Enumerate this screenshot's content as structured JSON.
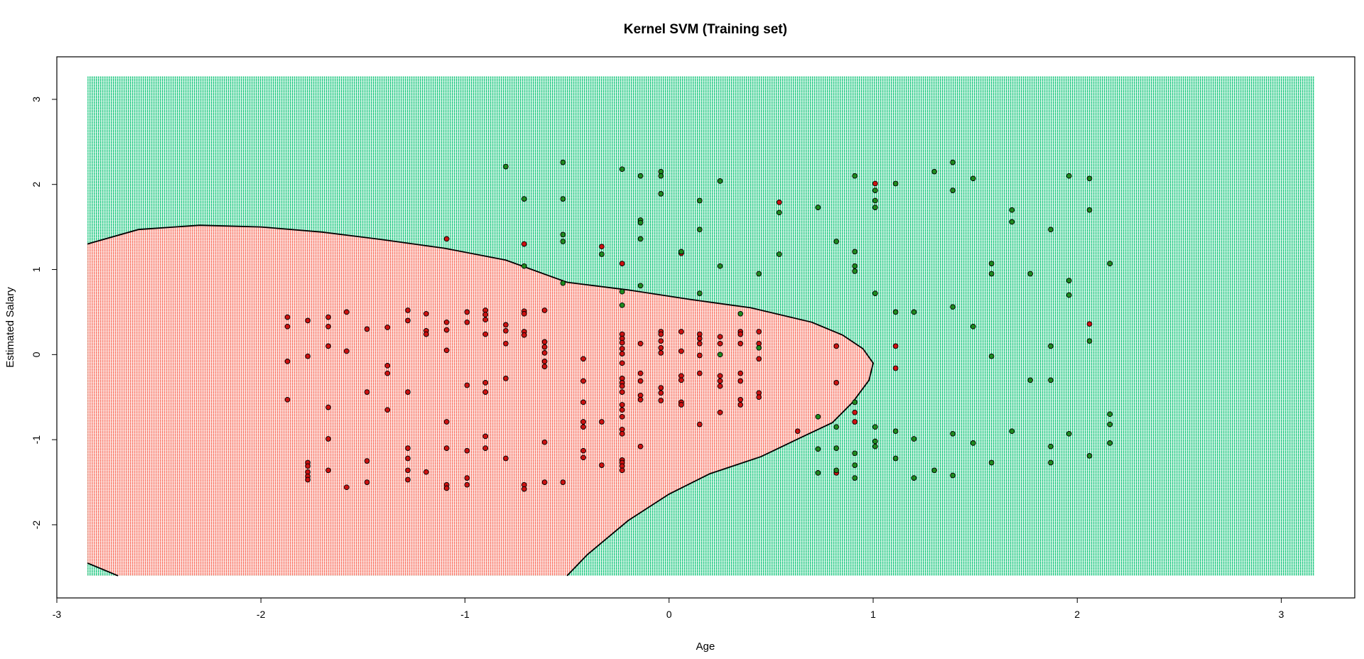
{
  "chart_data": {
    "type": "scatter",
    "title": "Kernel SVM (Training set)",
    "xlabel": "Age",
    "ylabel": "Estimated Salary",
    "xlim": [
      -3.0,
      3.36
    ],
    "ylim": [
      -2.86,
      3.5
    ],
    "grid_extent": {
      "x": [
        -2.85,
        3.16
      ],
      "y": [
        -2.6,
        3.27
      ]
    },
    "x_ticks": [
      -3,
      -2,
      -1,
      0,
      1,
      2,
      3
    ],
    "y_ticks": [
      -2,
      -1,
      0,
      1,
      2,
      3
    ],
    "grid": false,
    "legend": "none",
    "colors": {
      "region_0": "#fa8072",
      "region_1": "#2ecc8a",
      "point_0": "#cc1111",
      "point_1": "#1e8a1e",
      "boundary": "#000000"
    },
    "decision_boundary": {
      "upper": [
        [
          -2.85,
          1.3
        ],
        [
          -2.6,
          1.47
        ],
        [
          -2.3,
          1.52
        ],
        [
          -2.0,
          1.5
        ],
        [
          -1.7,
          1.44
        ],
        [
          -1.4,
          1.35
        ],
        [
          -1.1,
          1.25
        ],
        [
          -0.8,
          1.11
        ],
        [
          -0.5,
          0.85
        ],
        [
          -0.2,
          0.76
        ],
        [
          0.1,
          0.65
        ],
        [
          0.4,
          0.55
        ],
        [
          0.7,
          0.38
        ],
        [
          0.85,
          0.23
        ],
        [
          0.95,
          0.07
        ],
        [
          1.0,
          -0.1
        ]
      ],
      "lower": [
        [
          1.0,
          -0.1
        ],
        [
          0.98,
          -0.3
        ],
        [
          0.9,
          -0.56
        ],
        [
          0.8,
          -0.8
        ],
        [
          0.65,
          -0.97
        ],
        [
          0.45,
          -1.2
        ],
        [
          0.2,
          -1.4
        ],
        [
          0.0,
          -1.64
        ],
        [
          -0.2,
          -1.95
        ],
        [
          -0.4,
          -2.35
        ],
        [
          -0.5,
          -2.6
        ]
      ],
      "corner": [
        [
          -2.85,
          -2.45
        ],
        [
          -2.7,
          -2.6
        ]
      ]
    },
    "series": [
      {
        "name": "",
        "class": 0,
        "points": [
          [
            -1.87,
            0.44
          ],
          [
            -1.87,
            0.33
          ],
          [
            -1.87,
            -0.08
          ],
          [
            -1.87,
            -0.53
          ],
          [
            -1.77,
            0.4
          ],
          [
            -1.77,
            -0.02
          ],
          [
            -1.77,
            -1.27
          ],
          [
            -1.77,
            -1.31
          ],
          [
            -1.77,
            -1.38
          ],
          [
            -1.77,
            -1.43
          ],
          [
            -1.77,
            -1.47
          ],
          [
            -1.67,
            0.44
          ],
          [
            -1.67,
            0.33
          ],
          [
            -1.67,
            0.1
          ],
          [
            -1.67,
            -0.62
          ],
          [
            -1.67,
            -0.99
          ],
          [
            -1.67,
            -1.36
          ],
          [
            -1.58,
            0.5
          ],
          [
            -1.58,
            0.04
          ],
          [
            -1.58,
            -1.56
          ],
          [
            -1.48,
            0.3
          ],
          [
            -1.48,
            -0.44
          ],
          [
            -1.48,
            -1.25
          ],
          [
            -1.48,
            -1.5
          ],
          [
            -1.38,
            0.32
          ],
          [
            -1.38,
            -0.13
          ],
          [
            -1.38,
            -0.22
          ],
          [
            -1.38,
            -0.65
          ],
          [
            -1.28,
            0.52
          ],
          [
            -1.28,
            0.4
          ],
          [
            -1.28,
            -0.44
          ],
          [
            -1.28,
            -1.1
          ],
          [
            -1.28,
            -1.22
          ],
          [
            -1.28,
            -1.36
          ],
          [
            -1.28,
            -1.47
          ],
          [
            -1.19,
            0.48
          ],
          [
            -1.19,
            0.28
          ],
          [
            -1.19,
            0.24
          ],
          [
            -1.19,
            -1.38
          ],
          [
            -1.09,
            1.36
          ],
          [
            -1.09,
            0.38
          ],
          [
            -1.09,
            0.29
          ],
          [
            -1.09,
            0.05
          ],
          [
            -1.09,
            -0.79
          ],
          [
            -1.09,
            -1.1
          ],
          [
            -1.09,
            -1.53
          ],
          [
            -1.09,
            -1.57
          ],
          [
            -0.99,
            0.5
          ],
          [
            -0.99,
            0.38
          ],
          [
            -0.99,
            -0.36
          ],
          [
            -0.99,
            -1.13
          ],
          [
            -0.99,
            -1.45
          ],
          [
            -0.99,
            -1.53
          ],
          [
            -0.9,
            0.52
          ],
          [
            -0.9,
            0.47
          ],
          [
            -0.9,
            0.41
          ],
          [
            -0.9,
            0.24
          ],
          [
            -0.9,
            -0.33
          ],
          [
            -0.9,
            -0.44
          ],
          [
            -0.9,
            -0.96
          ],
          [
            -0.9,
            -1.1
          ],
          [
            -0.8,
            0.35
          ],
          [
            -0.8,
            0.28
          ],
          [
            -0.8,
            0.13
          ],
          [
            -0.8,
            -0.28
          ],
          [
            -0.8,
            -1.22
          ],
          [
            -0.71,
            1.3
          ],
          [
            -0.71,
            0.51
          ],
          [
            -0.71,
            0.48
          ],
          [
            -0.71,
            0.27
          ],
          [
            -0.71,
            0.23
          ],
          [
            -0.71,
            -1.53
          ],
          [
            -0.71,
            -1.58
          ],
          [
            -0.61,
            0.52
          ],
          [
            -0.61,
            0.15
          ],
          [
            -0.61,
            0.09
          ],
          [
            -0.61,
            0.02
          ],
          [
            -0.61,
            -0.08
          ],
          [
            -0.61,
            -0.14
          ],
          [
            -0.61,
            -1.03
          ],
          [
            -0.61,
            -1.5
          ],
          [
            -0.52,
            -1.5
          ],
          [
            -0.42,
            -0.05
          ],
          [
            -0.42,
            -0.31
          ],
          [
            -0.42,
            -0.56
          ],
          [
            -0.42,
            -0.79
          ],
          [
            -0.42,
            -0.85
          ],
          [
            -0.42,
            -1.13
          ],
          [
            -0.42,
            -1.21
          ],
          [
            -0.33,
            1.27
          ],
          [
            -0.33,
            -0.79
          ],
          [
            -0.33,
            -1.3
          ],
          [
            -0.23,
            1.07
          ],
          [
            -0.23,
            0.24
          ],
          [
            -0.23,
            0.19
          ],
          [
            -0.23,
            0.14
          ],
          [
            -0.23,
            0.07
          ],
          [
            -0.23,
            0.01
          ],
          [
            -0.23,
            -0.1
          ],
          [
            -0.23,
            -0.28
          ],
          [
            -0.23,
            -0.33
          ],
          [
            -0.23,
            -0.37
          ],
          [
            -0.23,
            -0.44
          ],
          [
            -0.23,
            -0.59
          ],
          [
            -0.23,
            -0.65
          ],
          [
            -0.23,
            -0.73
          ],
          [
            -0.23,
            -0.88
          ],
          [
            -0.23,
            -0.93
          ],
          [
            -0.23,
            -1.24
          ],
          [
            -0.23,
            -1.27
          ],
          [
            -0.23,
            -1.31
          ],
          [
            -0.23,
            -1.36
          ],
          [
            -0.14,
            0.13
          ],
          [
            -0.14,
            -0.22
          ],
          [
            -0.14,
            -0.31
          ],
          [
            -0.14,
            -0.48
          ],
          [
            -0.14,
            -0.53
          ],
          [
            -0.14,
            -1.08
          ],
          [
            -0.04,
            0.27
          ],
          [
            -0.04,
            0.24
          ],
          [
            -0.04,
            0.16
          ],
          [
            -0.04,
            0.08
          ],
          [
            -0.04,
            0.02
          ],
          [
            -0.04,
            -0.39
          ],
          [
            -0.04,
            -0.45
          ],
          [
            -0.04,
            -0.54
          ],
          [
            0.06,
            1.19
          ],
          [
            0.06,
            0.27
          ],
          [
            0.06,
            0.04
          ],
          [
            0.06,
            -0.25
          ],
          [
            0.06,
            -0.3
          ],
          [
            0.06,
            -0.56
          ],
          [
            0.06,
            -0.59
          ],
          [
            0.15,
            0.24
          ],
          [
            0.15,
            0.19
          ],
          [
            0.15,
            0.13
          ],
          [
            0.15,
            -0.01
          ],
          [
            0.15,
            -0.22
          ],
          [
            0.15,
            -0.82
          ],
          [
            0.25,
            0.21
          ],
          [
            0.25,
            0.13
          ],
          [
            0.25,
            -0.25
          ],
          [
            0.25,
            -0.31
          ],
          [
            0.25,
            -0.37
          ],
          [
            0.25,
            -0.68
          ],
          [
            0.35,
            0.27
          ],
          [
            0.35,
            0.24
          ],
          [
            0.35,
            0.13
          ],
          [
            0.35,
            -0.22
          ],
          [
            0.35,
            -0.31
          ],
          [
            0.35,
            -0.53
          ],
          [
            0.35,
            -0.59
          ],
          [
            0.44,
            0.27
          ],
          [
            0.44,
            0.13
          ],
          [
            0.44,
            -0.05
          ],
          [
            0.44,
            -0.45
          ],
          [
            0.44,
            -0.5
          ],
          [
            0.54,
            1.79
          ],
          [
            0.63,
            -0.9
          ],
          [
            0.82,
            0.1
          ],
          [
            0.82,
            -0.33
          ],
          [
            0.82,
            -1.39
          ],
          [
            0.91,
            -0.68
          ],
          [
            0.91,
            -0.79
          ],
          [
            1.01,
            2.01
          ],
          [
            1.11,
            0.1
          ],
          [
            1.11,
            -0.16
          ],
          [
            2.06,
            0.36
          ]
        ]
      },
      {
        "name": "",
        "class": 1,
        "points": [
          [
            -0.8,
            2.21
          ],
          [
            -0.71,
            1.83
          ],
          [
            -0.71,
            1.04
          ],
          [
            -0.52,
            2.26
          ],
          [
            -0.52,
            1.83
          ],
          [
            -0.52,
            1.41
          ],
          [
            -0.52,
            1.33
          ],
          [
            -0.52,
            0.84
          ],
          [
            -0.33,
            1.18
          ],
          [
            -0.23,
            2.18
          ],
          [
            -0.23,
            0.74
          ],
          [
            -0.23,
            0.58
          ],
          [
            -0.14,
            2.1
          ],
          [
            -0.14,
            1.58
          ],
          [
            -0.14,
            1.55
          ],
          [
            -0.14,
            1.36
          ],
          [
            -0.14,
            0.81
          ],
          [
            -0.04,
            2.15
          ],
          [
            -0.04,
            2.1
          ],
          [
            -0.04,
            1.89
          ],
          [
            0.06,
            1.21
          ],
          [
            0.15,
            1.81
          ],
          [
            0.15,
            1.47
          ],
          [
            0.15,
            0.72
          ],
          [
            0.25,
            2.04
          ],
          [
            0.25,
            1.04
          ],
          [
            0.25,
            0.0
          ],
          [
            0.35,
            0.48
          ],
          [
            0.44,
            0.95
          ],
          [
            0.44,
            0.08
          ],
          [
            0.54,
            1.67
          ],
          [
            0.54,
            1.18
          ],
          [
            0.73,
            1.73
          ],
          [
            0.73,
            -0.73
          ],
          [
            0.73,
            -1.11
          ],
          [
            0.73,
            -1.39
          ],
          [
            0.82,
            1.33
          ],
          [
            0.82,
            -0.85
          ],
          [
            0.82,
            -1.1
          ],
          [
            0.82,
            -1.36
          ],
          [
            0.91,
            2.1
          ],
          [
            0.91,
            1.21
          ],
          [
            0.91,
            1.04
          ],
          [
            0.91,
            0.98
          ],
          [
            0.91,
            -0.56
          ],
          [
            0.91,
            -1.16
          ],
          [
            0.91,
            -1.3
          ],
          [
            0.91,
            -1.45
          ],
          [
            1.01,
            1.93
          ],
          [
            1.01,
            1.81
          ],
          [
            1.01,
            1.73
          ],
          [
            1.01,
            0.72
          ],
          [
            1.01,
            -0.85
          ],
          [
            1.01,
            -1.02
          ],
          [
            1.01,
            -1.08
          ],
          [
            1.11,
            2.01
          ],
          [
            1.11,
            0.5
          ],
          [
            1.11,
            -0.9
          ],
          [
            1.11,
            -1.22
          ],
          [
            1.2,
            0.5
          ],
          [
            1.2,
            -0.99
          ],
          [
            1.2,
            -1.45
          ],
          [
            1.3,
            2.15
          ],
          [
            1.3,
            -1.36
          ],
          [
            1.39,
            2.26
          ],
          [
            1.39,
            1.93
          ],
          [
            1.39,
            0.56
          ],
          [
            1.39,
            -0.93
          ],
          [
            1.39,
            -1.42
          ],
          [
            1.49,
            2.07
          ],
          [
            1.49,
            0.33
          ],
          [
            1.49,
            -1.04
          ],
          [
            1.58,
            1.07
          ],
          [
            1.58,
            0.95
          ],
          [
            1.58,
            -0.02
          ],
          [
            1.58,
            -1.27
          ],
          [
            1.68,
            1.7
          ],
          [
            1.68,
            1.56
          ],
          [
            1.68,
            -0.9
          ],
          [
            1.77,
            0.95
          ],
          [
            1.77,
            -0.3
          ],
          [
            1.87,
            1.47
          ],
          [
            1.87,
            0.1
          ],
          [
            1.87,
            -0.3
          ],
          [
            1.87,
            -1.08
          ],
          [
            1.87,
            -1.27
          ],
          [
            1.96,
            2.1
          ],
          [
            1.96,
            0.87
          ],
          [
            1.96,
            0.7
          ],
          [
            1.96,
            -0.93
          ],
          [
            2.06,
            2.07
          ],
          [
            2.06,
            1.7
          ],
          [
            2.06,
            0.16
          ],
          [
            2.06,
            -1.19
          ],
          [
            2.16,
            1.07
          ],
          [
            2.16,
            -0.7
          ],
          [
            2.16,
            -0.82
          ],
          [
            2.16,
            -1.04
          ]
        ]
      }
    ]
  }
}
